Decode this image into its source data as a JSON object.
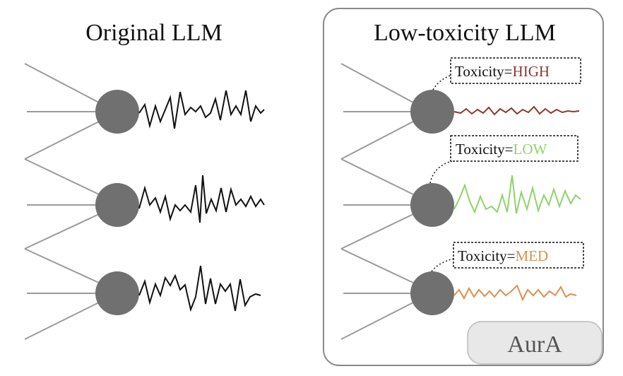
{
  "left_panel": {
    "title": "Original LLM"
  },
  "right_panel": {
    "title": "Low-toxicity LLM",
    "badge": "AurA",
    "neurons": [
      {
        "prefix": "Toxicity=",
        "level": "HIGH",
        "color": "#8b3a2e"
      },
      {
        "prefix": "Toxicity=",
        "level": "LOW",
        "color": "#8fd46a"
      },
      {
        "prefix": "Toxicity=",
        "level": "MED",
        "color": "#d9914f"
      }
    ]
  },
  "colors": {
    "neuron": "#707070",
    "edge": "#9a9a9a",
    "signal": "#111111",
    "panel_border": "#8a8a8a",
    "badge_fill": "#e8e8e8"
  }
}
